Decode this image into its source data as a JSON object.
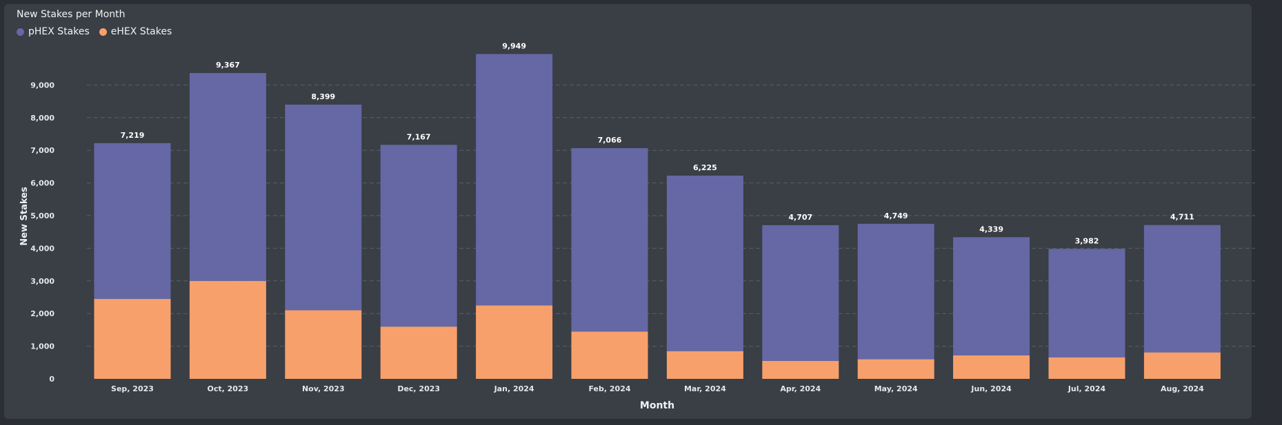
{
  "chart_data": {
    "type": "bar",
    "stacked": true,
    "title": "New Stakes per Month",
    "xlabel": "Month",
    "ylabel": "New Stakes",
    "ylim": [
      0,
      10000
    ],
    "yticks": [
      "0",
      "1,000",
      "2,000",
      "3,000",
      "4,000",
      "5,000",
      "6,000",
      "7,000",
      "8,000",
      "9,000"
    ],
    "categories": [
      "Sep, 2023",
      "Oct, 2023",
      "Nov, 2023",
      "Dec, 2023",
      "Jan, 2024",
      "Feb, 2024",
      "Mar, 2024",
      "Apr, 2024",
      "May, 2024",
      "Jun, 2024",
      "Jul, 2024",
      "Aug, 2024"
    ],
    "series": [
      {
        "name": "pHEX Stakes",
        "color": "#6568a4",
        "values": [
          4769,
          6367,
          6299,
          5567,
          7699,
          5616,
          5375,
          4157,
          4149,
          3619,
          3322,
          3901
        ]
      },
      {
        "name": "eHEX Stakes",
        "color": "#f7a06b",
        "values": [
          2450,
          3000,
          2100,
          1600,
          2250,
          1450,
          850,
          550,
          600,
          720,
          660,
          810
        ]
      }
    ],
    "totals": [
      7219,
      9367,
      8399,
      7167,
      9949,
      7066,
      6225,
      4707,
      4749,
      4339,
      3982,
      4711
    ],
    "total_labels": [
      "7,219",
      "9,367",
      "8,399",
      "7,167",
      "9,949",
      "7,066",
      "6,225",
      "4,707",
      "4,749",
      "4,339",
      "3,982",
      "4,711"
    ],
    "grid": true,
    "legend_position": "top-left"
  }
}
